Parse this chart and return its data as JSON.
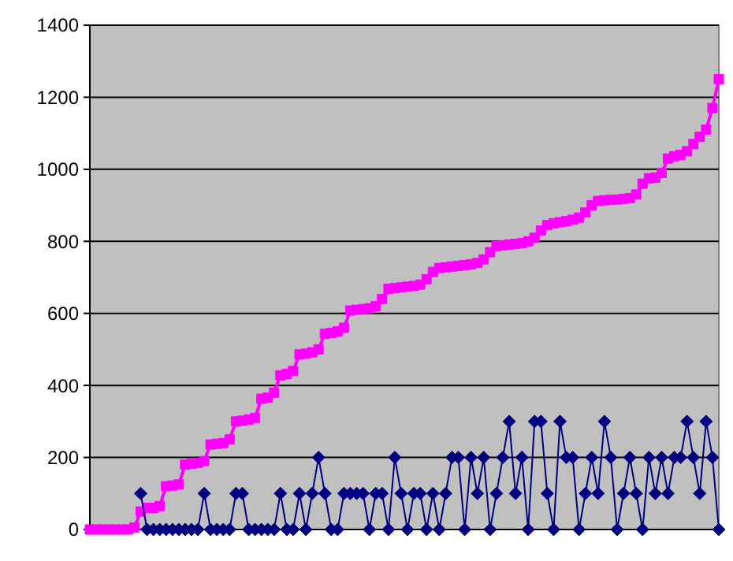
{
  "chart_data": {
    "type": "line",
    "categories": [
      null,
      null,
      null,
      null,
      null,
      null,
      null,
      null,
      null,
      null,
      null,
      null,
      null,
      null,
      null,
      null,
      null,
      null,
      null,
      null,
      null,
      null,
      null,
      null,
      null,
      null,
      null,
      null,
      null,
      null,
      null,
      null,
      null,
      null,
      null,
      null,
      null,
      null,
      null,
      null,
      null,
      null,
      null,
      null,
      null,
      null,
      null,
      null,
      null,
      null,
      null,
      null,
      null,
      null,
      null,
      null,
      null,
      null,
      null,
      null,
      null,
      null,
      null,
      null,
      null,
      null,
      null,
      null,
      null,
      null,
      null,
      null,
      null,
      null,
      null,
      null,
      null,
      null,
      null,
      null,
      null,
      null,
      null,
      null,
      null,
      null,
      null,
      null,
      null,
      null,
      null,
      null,
      null,
      null,
      null,
      null,
      null,
      null,
      null,
      null
    ],
    "ylim": [
      0,
      1400
    ],
    "yticks": [
      0,
      200,
      400,
      600,
      800,
      1000,
      1200,
      1400
    ],
    "grid": "y",
    "series": [
      {
        "color": "#ff00ff",
        "marker": "square",
        "values": [
          0,
          0,
          0,
          0,
          0,
          0,
          0,
          5,
          50,
          60,
          60,
          65,
          120,
          122,
          125,
          180,
          182,
          185,
          190,
          236,
          238,
          240,
          250,
          300,
          302,
          305,
          310,
          363,
          366,
          380,
          428,
          432,
          440,
          486,
          488,
          492,
          500,
          543,
          546,
          550,
          560,
          608,
          610,
          612,
          614,
          620,
          640,
          668,
          670,
          672,
          674,
          676,
          680,
          695,
          715,
          726,
          728,
          730,
          732,
          734,
          736,
          740,
          750,
          770,
          787,
          789,
          791,
          793,
          795,
          800,
          810,
          830,
          845,
          850,
          853,
          856,
          860,
          866,
          880,
          900,
          912,
          914,
          915,
          916,
          918,
          920,
          930,
          960,
          975,
          977,
          990,
          1030,
          1036,
          1040,
          1050,
          1070,
          1090,
          1110,
          1170,
          1250
        ]
      },
      {
        "color": "#000080",
        "marker": "diamond",
        "values": [
          null,
          null,
          null,
          null,
          null,
          null,
          null,
          null,
          100,
          0,
          0,
          0,
          0,
          0,
          0,
          0,
          0,
          0,
          100,
          0,
          0,
          0,
          0,
          100,
          100,
          0,
          0,
          0,
          0,
          0,
          100,
          0,
          0,
          100,
          0,
          100,
          200,
          100,
          0,
          0,
          100,
          100,
          100,
          100,
          0,
          100,
          100,
          0,
          200,
          100,
          0,
          100,
          100,
          0,
          100,
          0,
          100,
          200,
          200,
          0,
          200,
          100,
          200,
          0,
          100,
          200,
          300,
          100,
          200,
          0,
          300,
          300,
          100,
          0,
          300,
          200,
          200,
          0,
          100,
          200,
          100,
          300,
          200,
          0,
          100,
          200,
          100,
          0,
          200,
          100,
          200,
          100,
          200,
          200,
          300,
          200,
          100,
          300,
          200,
          0
        ]
      }
    ]
  }
}
